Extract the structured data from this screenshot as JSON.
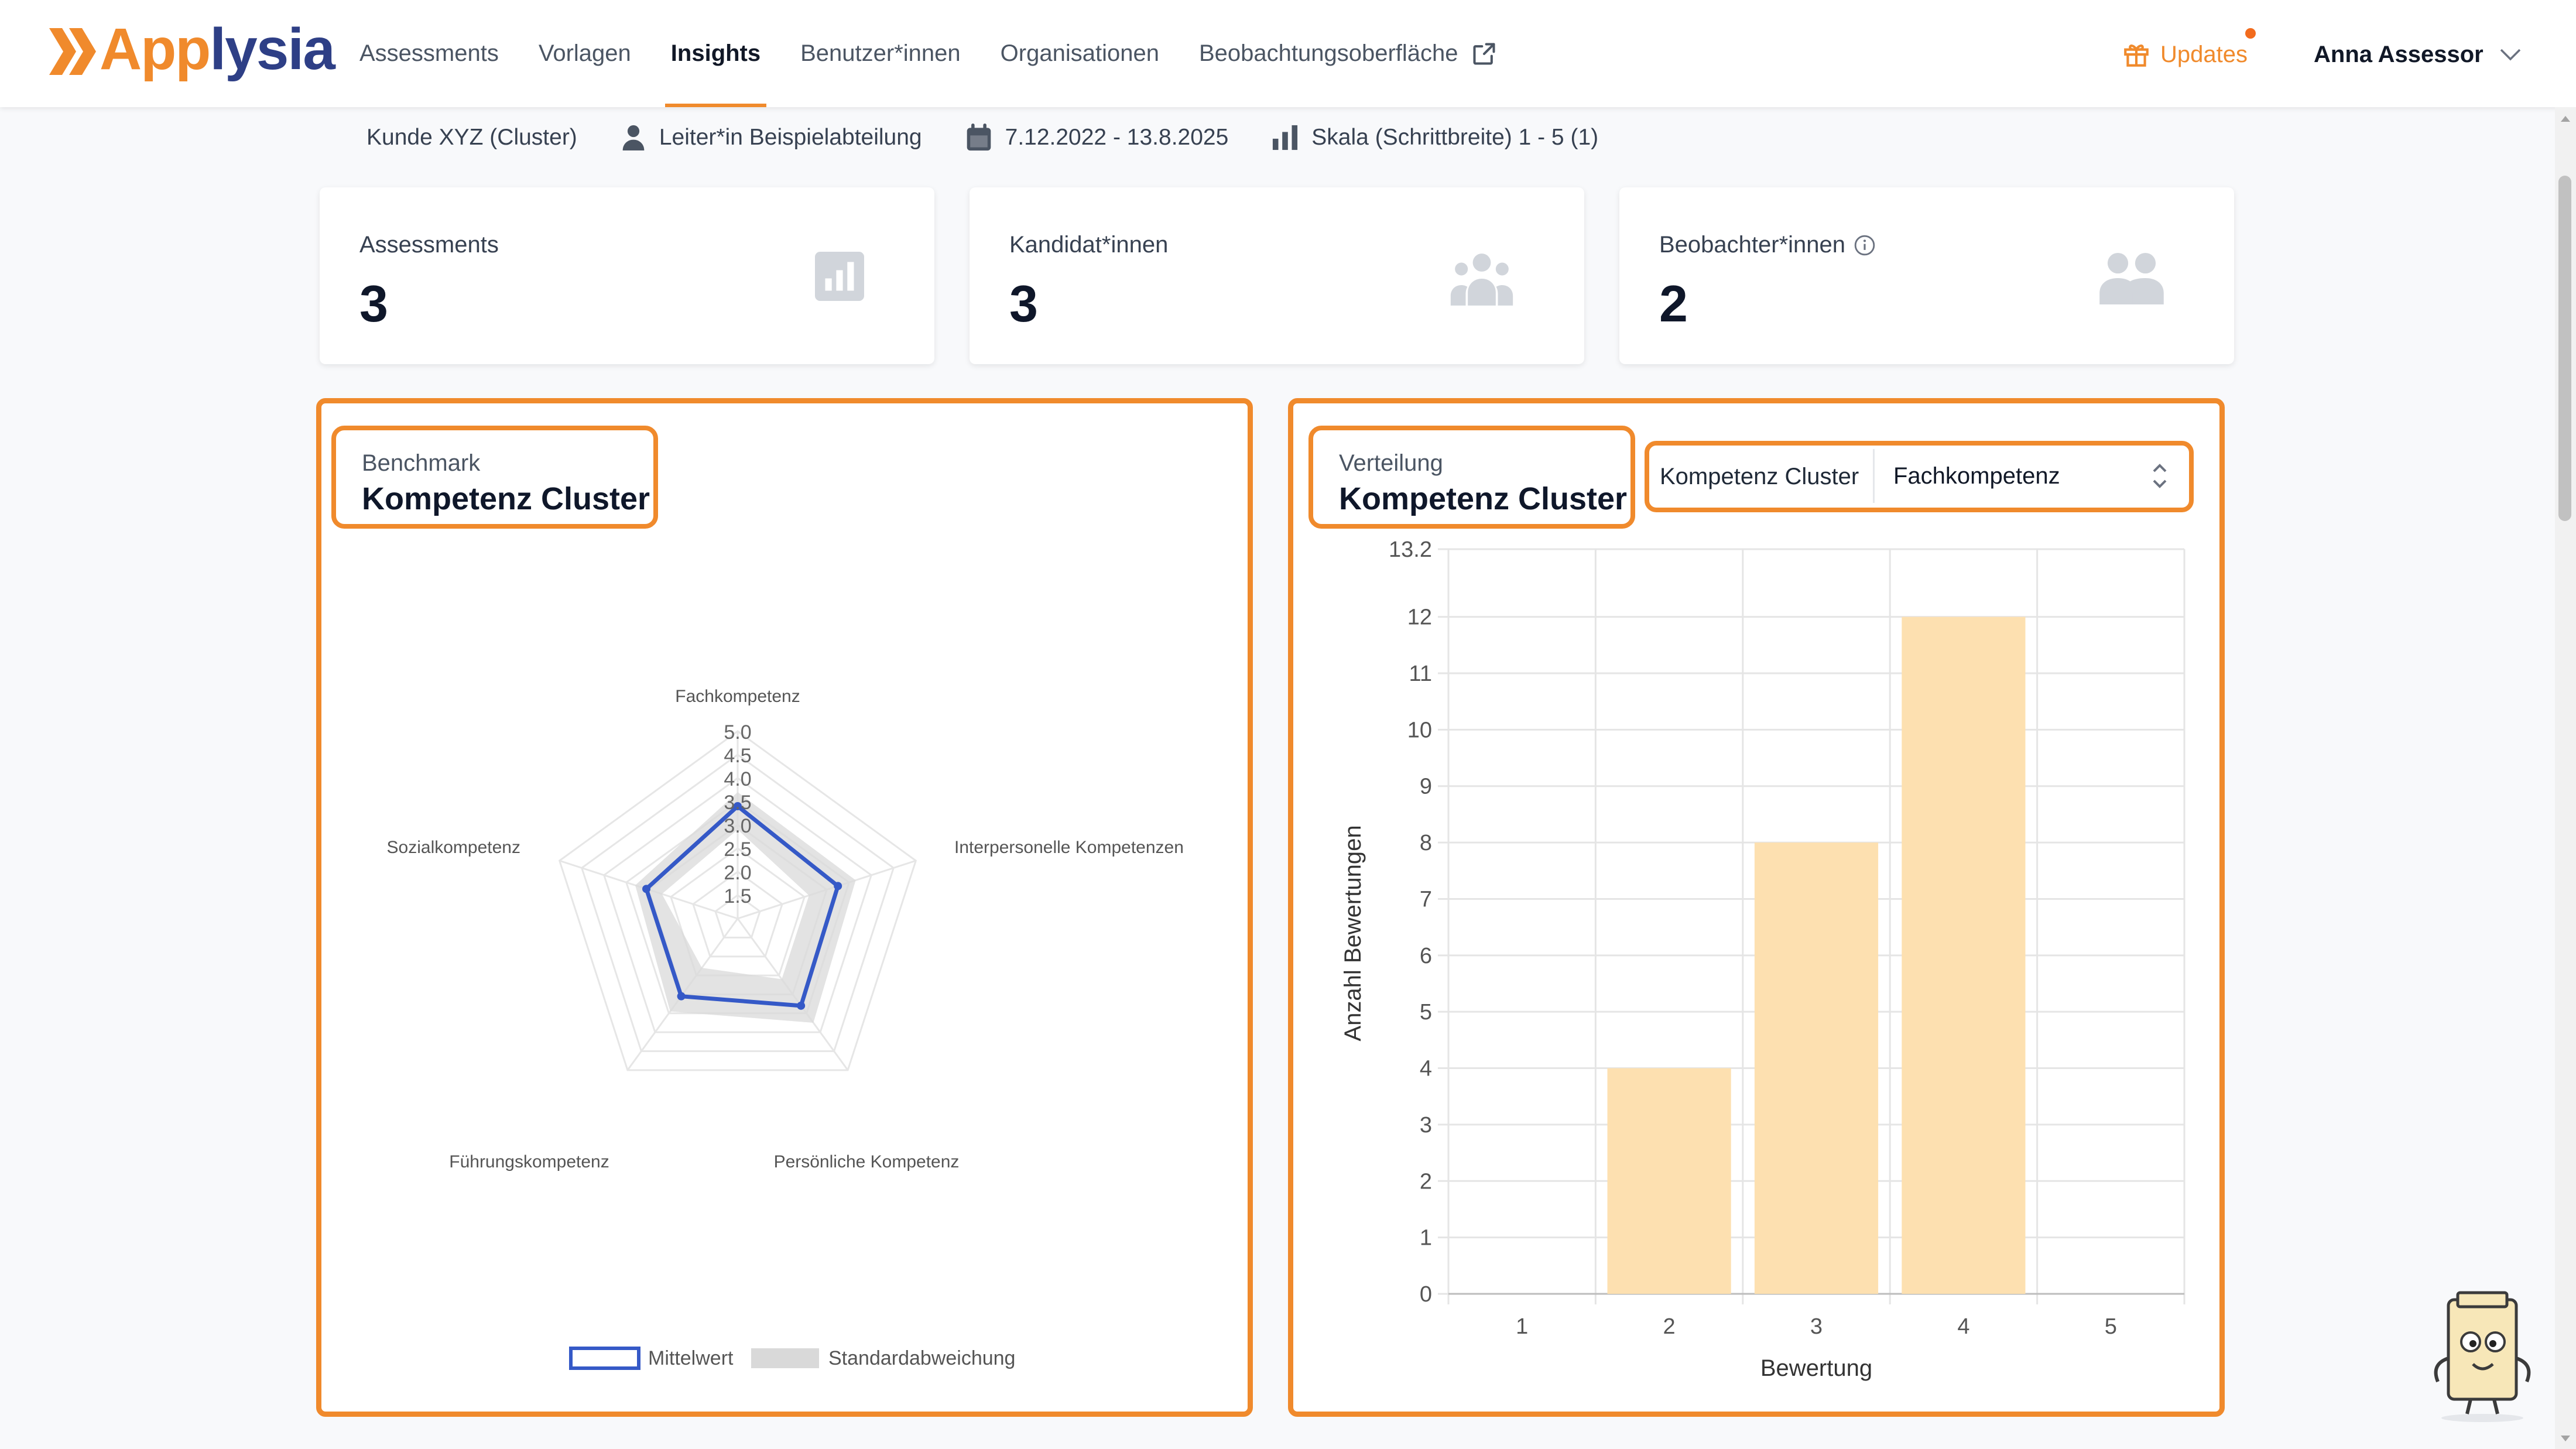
{
  "app": {
    "name_part1": "App",
    "name_part2": "lysia"
  },
  "nav": {
    "items": [
      {
        "label": "Assessments",
        "active": false
      },
      {
        "label": "Vorlagen",
        "active": false
      },
      {
        "label": "Insights",
        "active": true
      },
      {
        "label": "Benutzer*innen",
        "active": false
      },
      {
        "label": "Organisationen",
        "active": false
      },
      {
        "label": "Beobachtungsoberfläche",
        "active": false,
        "external": true
      }
    ]
  },
  "header": {
    "updates_label": "Updates",
    "user_name": "Anna Assessor"
  },
  "filters": {
    "client": "Kunde XYZ (Cluster)",
    "role": "Leiter*in Beispielabteilung",
    "date_range": "7.12.2022 - 13.8.2025",
    "scale": "Skala (Schrittbreite) 1 - 5 (1)"
  },
  "stats": [
    {
      "label": "Assessments",
      "value": "3",
      "icon": "bar-chart-icon"
    },
    {
      "label": "Kandidat*innen",
      "value": "3",
      "icon": "group-icon"
    },
    {
      "label": "Beobachter*innen",
      "value": "2",
      "icon": "users-icon",
      "info": true
    }
  ],
  "benchmark": {
    "subtitle": "Benchmark",
    "title": "Kompetenz Cluster",
    "legend_mean": "Mittelwert",
    "legend_std": "Standardabweichung"
  },
  "distribution": {
    "subtitle": "Verteilung",
    "title": "Kompetenz Cluster",
    "select_label": "Kompetenz Cluster",
    "select_value": "Fachkompetenz"
  },
  "colors": {
    "accent": "#f08a2c",
    "brand_dark": "#2e3f86",
    "radar_line": "#3559c7",
    "radar_band": "#d9d9d9",
    "bar_fill": "#fde0b0"
  },
  "chart_data": [
    {
      "type": "radar",
      "axes": [
        "Fachkompetenz",
        "Interpersonelle Kompetenzen",
        "Persönliche Kompetenz",
        "Führungskompetenz",
        "Sozialkompetenz"
      ],
      "r_ticks": [
        "1.5",
        "2.0",
        "2.5",
        "3.0",
        "3.5",
        "4.0",
        "4.5",
        "5.0"
      ],
      "r_range": [
        1.0,
        5.0
      ],
      "series": [
        {
          "name": "Mittelwert",
          "values": [
            3.4,
            3.25,
            3.3,
            3.05,
            3.05
          ]
        },
        {
          "name": "Standardabweichung",
          "upper": [
            3.7,
            3.65,
            3.75,
            3.45,
            3.3
          ],
          "lower": [
            2.9,
            2.6,
            2.6,
            2.3,
            2.7
          ]
        }
      ],
      "legend": "bottom"
    },
    {
      "type": "bar",
      "categories": [
        "1",
        "2",
        "3",
        "4",
        "5"
      ],
      "values": [
        0,
        4,
        8,
        12,
        0
      ],
      "xlabel": "Bewertung",
      "ylabel": "Anzahl Bewertungen",
      "ylim": [
        0,
        13.2
      ],
      "yticks": [
        "0",
        "1",
        "2",
        "3",
        "4",
        "5",
        "6",
        "7",
        "8",
        "9",
        "10",
        "11",
        "12",
        "13.2"
      ],
      "grid": true
    }
  ]
}
